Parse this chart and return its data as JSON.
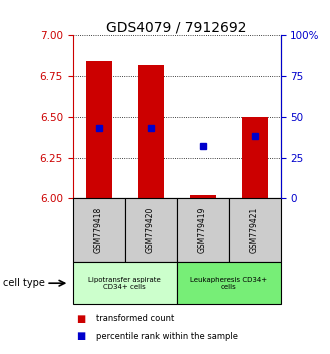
{
  "title": "GDS4079 / 7912692",
  "samples": [
    "GSM779418",
    "GSM779420",
    "GSM779419",
    "GSM779421"
  ],
  "bar_bottoms": [
    6.0,
    6.0,
    6.0,
    6.0
  ],
  "bar_tops": [
    6.84,
    6.82,
    6.02,
    6.5
  ],
  "percentile_values": [
    6.43,
    6.43,
    6.32,
    6.38
  ],
  "bar_color": "#cc0000",
  "dot_color": "#0000cc",
  "ylim": [
    6.0,
    7.0
  ],
  "yticks_left": [
    6.0,
    6.25,
    6.5,
    6.75,
    7.0
  ],
  "yticks_right": [
    0,
    25,
    50,
    75,
    100
  ],
  "yticks_right_labels": [
    "0",
    "25",
    "50",
    "75",
    "100%"
  ],
  "left_tick_color": "#cc0000",
  "right_tick_color": "#0000cc",
  "title_fontsize": 10,
  "bar_width": 0.5,
  "groups": [
    {
      "label": "Lipotransfer aspirate\nCD34+ cells",
      "start": 0,
      "end": 2,
      "color": "#ccffcc"
    },
    {
      "label": "Leukapheresis CD34+\ncells",
      "start": 2,
      "end": 4,
      "color": "#77ee77"
    }
  ],
  "cell_type_label": "cell type",
  "legend_items": [
    {
      "color": "#cc0000",
      "label": "transformed count"
    },
    {
      "color": "#0000cc",
      "label": "percentile rank within the sample"
    }
  ],
  "sample_box_color": "#cccccc",
  "plot_bg": "#ffffff"
}
